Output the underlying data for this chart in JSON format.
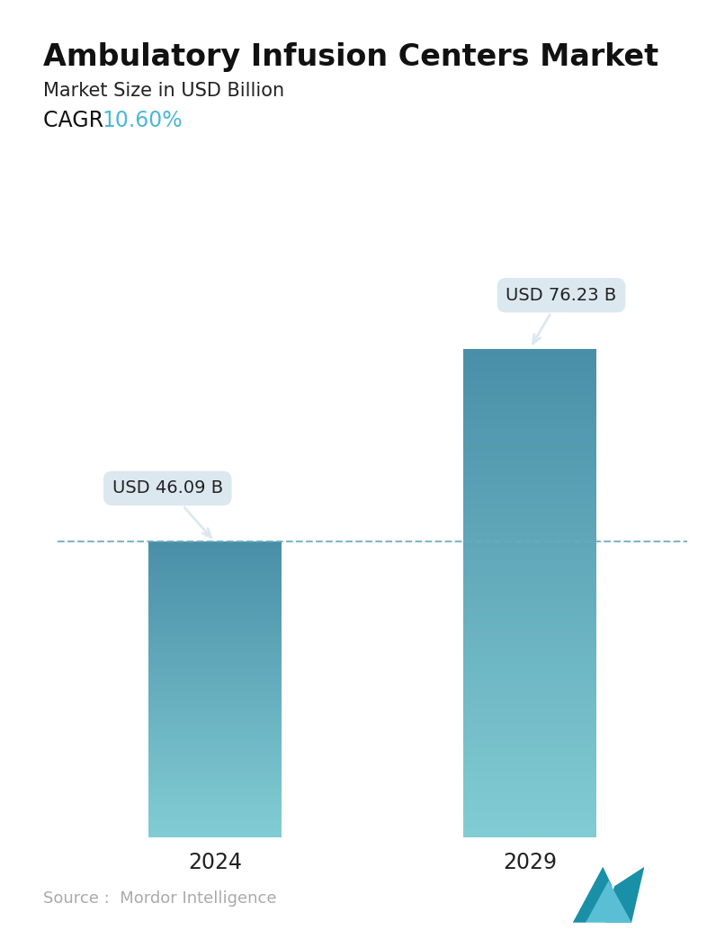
{
  "title": "Ambulatory Infusion Centers Market",
  "subtitle": "Market Size in USD Billion",
  "cagr_label": "CAGR  ",
  "cagr_value": "10.60%",
  "cagr_color": "#4db8d4",
  "categories": [
    "2024",
    "2029"
  ],
  "values": [
    46.09,
    76.23
  ],
  "bar_labels": [
    "USD 46.09 B",
    "USD 76.23 B"
  ],
  "bar_color_top": "#4a8fa8",
  "bar_color_bottom": "#82cdd4",
  "dashed_line_y": 46.09,
  "dashed_line_color": "#6aaabf",
  "ylim": [
    0,
    90
  ],
  "background_color": "#ffffff",
  "source_text": "Source :  Mordor Intelligence",
  "source_color": "#aaaaaa",
  "title_fontsize": 24,
  "subtitle_fontsize": 15,
  "cagr_fontsize": 17,
  "xlabel_fontsize": 17,
  "annotation_fontsize": 14,
  "tooltip_bg_color": "#dce8ef",
  "tooltip_text_color": "#222222"
}
